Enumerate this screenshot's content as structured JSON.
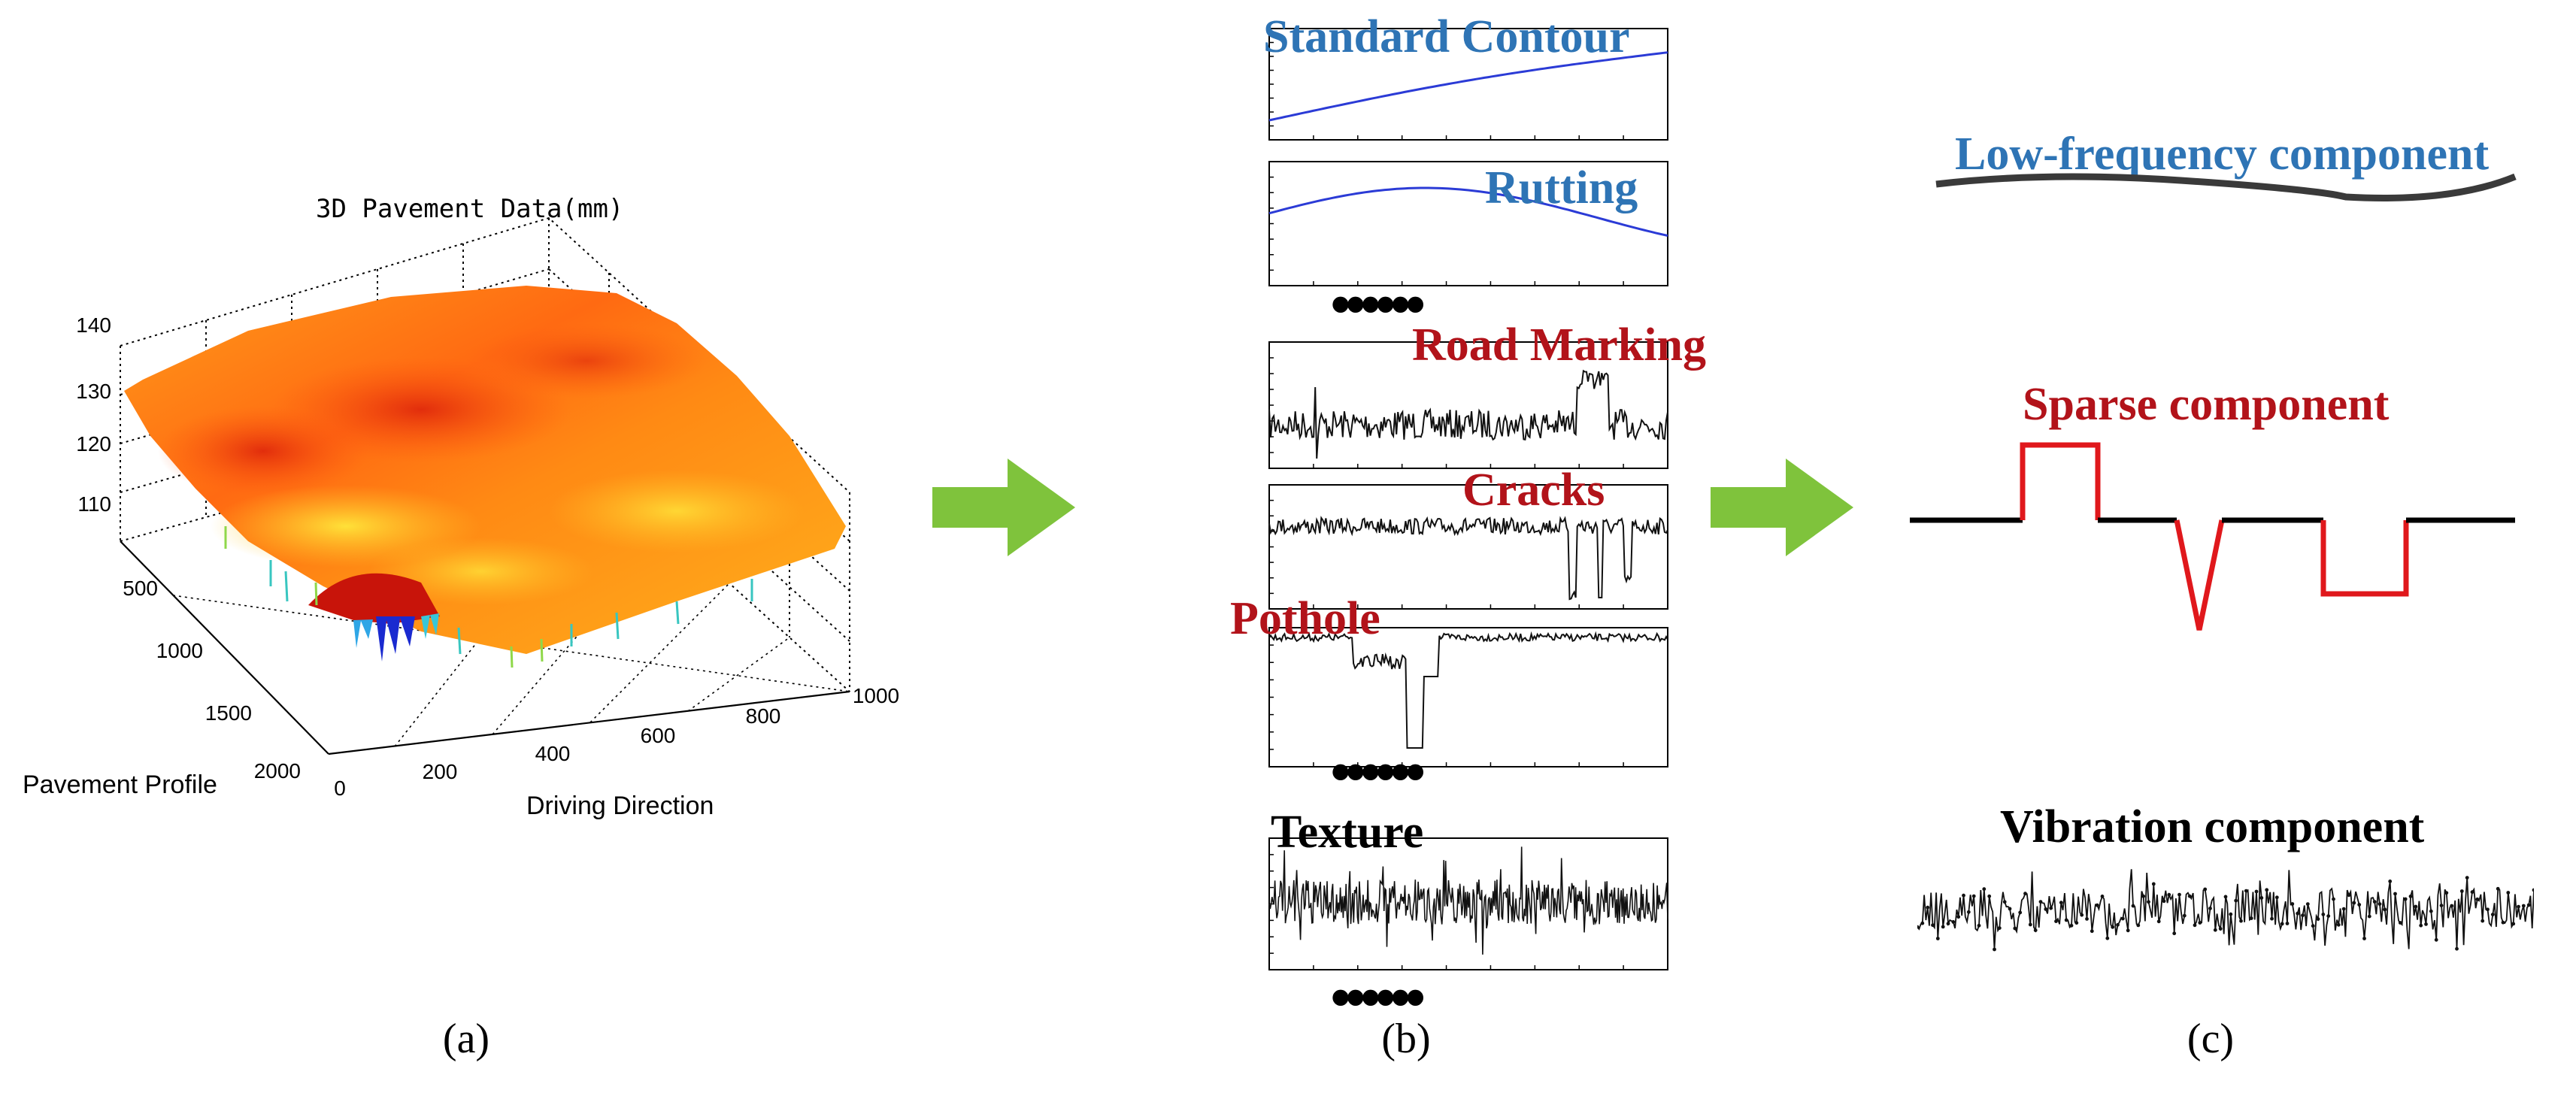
{
  "panel_a": {
    "plot_title": "3D Pavement Data(mm)",
    "z_ticks": [
      "140",
      "130",
      "120",
      "110"
    ],
    "profile_ticks": [
      "500",
      "1000",
      "1500",
      "2000"
    ],
    "driving_ticks": [
      "0",
      "200",
      "400",
      "600",
      "800",
      "1000"
    ],
    "profile_label": "Pavement Profile",
    "driving_label": "Driving Direction",
    "caption": "(a)",
    "colormap": "jet"
  },
  "panel_b": {
    "standard_contour": "Standard Contour",
    "rutting": "Rutting",
    "road_marking": "Road Marking",
    "cracks": "Cracks",
    "pothole": "Pothole",
    "texture": "Texture",
    "ellipsis": "••••••",
    "caption": "(b)"
  },
  "panel_c": {
    "low_frequency": "Low-frequency component",
    "sparse": "Sparse component",
    "vibration": "Vibration component",
    "caption": "(c)"
  },
  "colors": {
    "blue_label": "#2e74b5",
    "red_label": "#b2131a",
    "arrow_green": "#7fc33c",
    "sparse_red": "#e0181c",
    "line_blue": "#2b3bd6"
  }
}
